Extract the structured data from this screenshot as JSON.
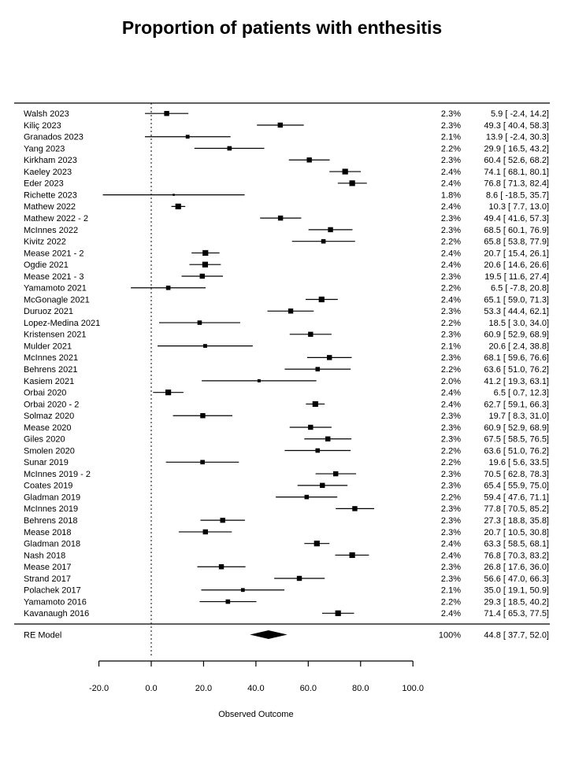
{
  "chart_data": {
    "type": "forest",
    "title": "Proportion of patients with enthesitis",
    "xlabel": "Observed Outcome",
    "x_ticks": [
      -20.0,
      0.0,
      20.0,
      40.0,
      60.0,
      80.0,
      100.0
    ],
    "xlim": [
      -20.0,
      100.0
    ],
    "zero_line": 0.0,
    "grid": false,
    "marker_color": "#000000",
    "columns": {
      "left": "study",
      "right": [
        "weight",
        "estimate_ci"
      ]
    },
    "studies": [
      {
        "label": "Walsh 2023",
        "weight": 2.3,
        "estimate": 5.9,
        "ci_low": -2.4,
        "ci_high": 14.2
      },
      {
        "label": "Kiliç 2023",
        "weight": 2.3,
        "estimate": 49.3,
        "ci_low": 40.4,
        "ci_high": 58.3
      },
      {
        "label": "Granados 2023",
        "weight": 2.1,
        "estimate": 13.9,
        "ci_low": -2.4,
        "ci_high": 30.3
      },
      {
        "label": "Yang 2023",
        "weight": 2.2,
        "estimate": 29.9,
        "ci_low": 16.5,
        "ci_high": 43.2
      },
      {
        "label": "Kirkham 2023",
        "weight": 2.3,
        "estimate": 60.4,
        "ci_low": 52.6,
        "ci_high": 68.2
      },
      {
        "label": "Kaeley 2023",
        "weight": 2.4,
        "estimate": 74.1,
        "ci_low": 68.1,
        "ci_high": 80.1
      },
      {
        "label": "Eder 2023",
        "weight": 2.4,
        "estimate": 76.8,
        "ci_low": 71.3,
        "ci_high": 82.4
      },
      {
        "label": "Richette 2023",
        "weight": 1.8,
        "estimate": 8.6,
        "ci_low": -18.5,
        "ci_high": 35.7
      },
      {
        "label": "Mathew 2022",
        "weight": 2.4,
        "estimate": 10.3,
        "ci_low": 7.7,
        "ci_high": 13.0
      },
      {
        "label": "Mathew 2022 - 2",
        "weight": 2.3,
        "estimate": 49.4,
        "ci_low": 41.6,
        "ci_high": 57.3
      },
      {
        "label": "McInnes 2022",
        "weight": 2.3,
        "estimate": 68.5,
        "ci_low": 60.1,
        "ci_high": 76.9
      },
      {
        "label": "Kivitz 2022",
        "weight": 2.2,
        "estimate": 65.8,
        "ci_low": 53.8,
        "ci_high": 77.9
      },
      {
        "label": "Mease 2021 - 2",
        "weight": 2.4,
        "estimate": 20.7,
        "ci_low": 15.4,
        "ci_high": 26.1
      },
      {
        "label": "Ogdie 2021",
        "weight": 2.4,
        "estimate": 20.6,
        "ci_low": 14.6,
        "ci_high": 26.6
      },
      {
        "label": "Mease 2021 - 3",
        "weight": 2.3,
        "estimate": 19.5,
        "ci_low": 11.6,
        "ci_high": 27.4
      },
      {
        "label": "Yamamoto 2021",
        "weight": 2.2,
        "estimate": 6.5,
        "ci_low": -7.8,
        "ci_high": 20.8
      },
      {
        "label": "McGonagle 2021",
        "weight": 2.4,
        "estimate": 65.1,
        "ci_low": 59.0,
        "ci_high": 71.3
      },
      {
        "label": "Duruoz 2021",
        "weight": 2.3,
        "estimate": 53.3,
        "ci_low": 44.4,
        "ci_high": 62.1
      },
      {
        "label": "Lopez-Medina 2021",
        "weight": 2.2,
        "estimate": 18.5,
        "ci_low": 3.0,
        "ci_high": 34.0
      },
      {
        "label": "Kristensen 2021",
        "weight": 2.3,
        "estimate": 60.9,
        "ci_low": 52.9,
        "ci_high": 68.9
      },
      {
        "label": "Mulder 2021",
        "weight": 2.1,
        "estimate": 20.6,
        "ci_low": 2.4,
        "ci_high": 38.8
      },
      {
        "label": "McInnes 2021",
        "weight": 2.3,
        "estimate": 68.1,
        "ci_low": 59.6,
        "ci_high": 76.6
      },
      {
        "label": "Behrens 2021",
        "weight": 2.2,
        "estimate": 63.6,
        "ci_low": 51.0,
        "ci_high": 76.2
      },
      {
        "label": "Kasiem 2021",
        "weight": 2.0,
        "estimate": 41.2,
        "ci_low": 19.3,
        "ci_high": 63.1
      },
      {
        "label": "Orbai 2020",
        "weight": 2.4,
        "estimate": 6.5,
        "ci_low": 0.7,
        "ci_high": 12.3
      },
      {
        "label": "Orbai 2020 - 2",
        "weight": 2.4,
        "estimate": 62.7,
        "ci_low": 59.1,
        "ci_high": 66.3
      },
      {
        "label": "Solmaz 2020",
        "weight": 2.3,
        "estimate": 19.7,
        "ci_low": 8.3,
        "ci_high": 31.0
      },
      {
        "label": "Mease 2020",
        "weight": 2.3,
        "estimate": 60.9,
        "ci_low": 52.9,
        "ci_high": 68.9
      },
      {
        "label": "Giles 2020",
        "weight": 2.3,
        "estimate": 67.5,
        "ci_low": 58.5,
        "ci_high": 76.5
      },
      {
        "label": "Smolen 2020",
        "weight": 2.2,
        "estimate": 63.6,
        "ci_low": 51.0,
        "ci_high": 76.2
      },
      {
        "label": "Sunar 2019",
        "weight": 2.2,
        "estimate": 19.6,
        "ci_low": 5.6,
        "ci_high": 33.5
      },
      {
        "label": "McInnes 2019 - 2",
        "weight": 2.3,
        "estimate": 70.5,
        "ci_low": 62.8,
        "ci_high": 78.3
      },
      {
        "label": "Coates 2019",
        "weight": 2.3,
        "estimate": 65.4,
        "ci_low": 55.9,
        "ci_high": 75.0
      },
      {
        "label": "Gladman 2019",
        "weight": 2.2,
        "estimate": 59.4,
        "ci_low": 47.6,
        "ci_high": 71.1
      },
      {
        "label": "McInnes 2019",
        "weight": 2.3,
        "estimate": 77.8,
        "ci_low": 70.5,
        "ci_high": 85.2
      },
      {
        "label": "Behrens 2018",
        "weight": 2.3,
        "estimate": 27.3,
        "ci_low": 18.8,
        "ci_high": 35.8
      },
      {
        "label": "Mease 2018",
        "weight": 2.3,
        "estimate": 20.7,
        "ci_low": 10.5,
        "ci_high": 30.8
      },
      {
        "label": "Gladman 2018",
        "weight": 2.4,
        "estimate": 63.3,
        "ci_low": 58.5,
        "ci_high": 68.1
      },
      {
        "label": "Nash 2018",
        "weight": 2.4,
        "estimate": 76.8,
        "ci_low": 70.3,
        "ci_high": 83.2
      },
      {
        "label": "Mease 2017",
        "weight": 2.3,
        "estimate": 26.8,
        "ci_low": 17.6,
        "ci_high": 36.0
      },
      {
        "label": "Strand 2017",
        "weight": 2.3,
        "estimate": 56.6,
        "ci_low": 47.0,
        "ci_high": 66.3
      },
      {
        "label": "Polachek 2017",
        "weight": 2.1,
        "estimate": 35.0,
        "ci_low": 19.1,
        "ci_high": 50.9
      },
      {
        "label": "Yamamoto 2016",
        "weight": 2.2,
        "estimate": 29.3,
        "ci_low": 18.5,
        "ci_high": 40.2
      },
      {
        "label": "Kavanaugh 2016",
        "weight": 2.4,
        "estimate": 71.4,
        "ci_low": 65.3,
        "ci_high": 77.5
      }
    ],
    "summary": {
      "label": "RE Model",
      "weight": 100,
      "estimate": 44.8,
      "ci_low": 37.7,
      "ci_high": 52.0
    }
  }
}
